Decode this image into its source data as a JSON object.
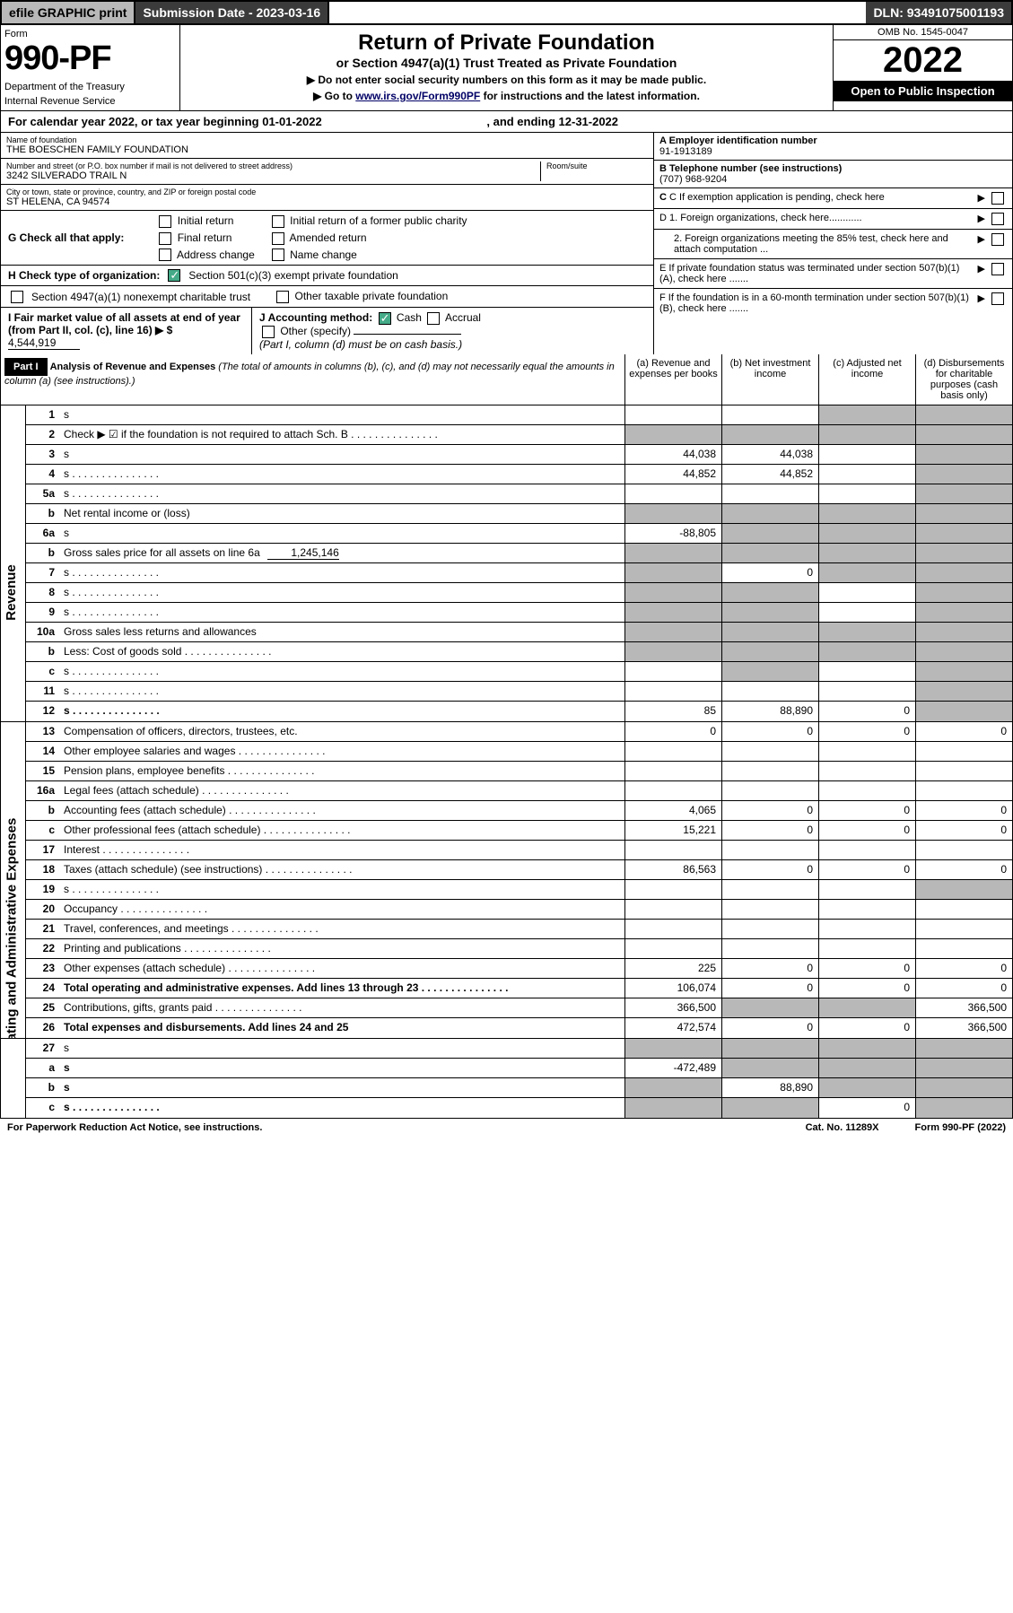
{
  "topbar": {
    "efile": "efile GRAPHIC print",
    "submission": "Submission Date - 2023-03-16",
    "dln": "DLN: 93491075001193"
  },
  "header": {
    "form_label": "Form",
    "form_number": "990-PF",
    "dept1": "Department of the Treasury",
    "dept2": "Internal Revenue Service",
    "title": "Return of Private Foundation",
    "subtitle": "or Section 4947(a)(1) Trust Treated as Private Foundation",
    "note1": "▶ Do not enter social security numbers on this form as it may be made public.",
    "note2": "▶ Go to ",
    "note2_link": "www.irs.gov/Form990PF",
    "note2_tail": " for instructions and the latest information.",
    "omb": "OMB No. 1545-0047",
    "year": "2022",
    "open": "Open to Public Inspection"
  },
  "cal_year": "For calendar year 2022, or tax year beginning 01-01-2022",
  "cal_year_end": ", and ending 12-31-2022",
  "entity": {
    "name_label": "Name of foundation",
    "name": "THE BOESCHEN FAMILY FOUNDATION",
    "addr_label": "Number and street (or P.O. box number if mail is not delivered to street address)",
    "addr": "3242 SILVERADO TRAIL N",
    "room_label": "Room/suite",
    "city_label": "City or town, state or province, country, and ZIP or foreign postal code",
    "city": "ST HELENA, CA  94574",
    "ein_label": "A Employer identification number",
    "ein": "91-1913189",
    "phone_label": "B Telephone number (see instructions)",
    "phone": "(707) 968-9204",
    "c_label": "C If exemption application is pending, check here",
    "d1": "D 1. Foreign organizations, check here............",
    "d2": "2. Foreign organizations meeting the 85% test, check here and attach computation ...",
    "e_label": "E If private foundation status was terminated under section 507(b)(1)(A), check here .......",
    "f_label": "F If the foundation is in a 60-month termination under section 507(b)(1)(B), check here .......",
    "g_label": "G Check all that apply:",
    "g_opts": [
      "Initial return",
      "Final return",
      "Address change",
      "Initial return of a former public charity",
      "Amended return",
      "Name change"
    ],
    "h_label": "H Check type of organization:",
    "h_opt1": "Section 501(c)(3) exempt private foundation",
    "h_opt2": "Section 4947(a)(1) nonexempt charitable trust",
    "h_opt3": "Other taxable private foundation",
    "i_label": "I Fair market value of all assets at end of year (from Part II, col. (c), line 16) ▶ $",
    "i_value": "4,544,919",
    "j_label": "J Accounting method:",
    "j_cash": "Cash",
    "j_accrual": "Accrual",
    "j_other": "Other (specify)",
    "j_note": "(Part I, column (d) must be on cash basis.)"
  },
  "part1": {
    "label": "Part I",
    "title": "Analysis of Revenue and Expenses",
    "title_note": "(The total of amounts in columns (b), (c), and (d) may not necessarily equal the amounts in column (a) (see instructions).)",
    "col_a": "(a) Revenue and expenses per books",
    "col_b": "(b) Net investment income",
    "col_c": "(c) Adjusted net income",
    "col_d": "(d) Disbursements for charitable purposes (cash basis only)"
  },
  "sections": {
    "revenue": "Revenue",
    "expenses": "Operating and Administrative Expenses"
  },
  "rows": [
    {
      "n": "1",
      "d": "s",
      "a": "",
      "b": "",
      "c": "s"
    },
    {
      "n": "2",
      "d": "Check ▶ ☑ if the foundation is not required to attach Sch. B",
      "dotted": true,
      "nb": "s",
      "a": "s",
      "b": "s",
      "c": "s",
      "ds": "s"
    },
    {
      "n": "3",
      "d": "s",
      "a": "44,038",
      "b": "44,038",
      "c": ""
    },
    {
      "n": "4",
      "d": "s",
      "dotted": true,
      "a": "44,852",
      "b": "44,852",
      "c": ""
    },
    {
      "n": "5a",
      "d": "s",
      "dotted": true,
      "a": "",
      "b": "",
      "c": ""
    },
    {
      "n": "b",
      "d": "Net rental income or (loss)",
      "a": "s",
      "b": "s",
      "c": "s",
      "ds": "s"
    },
    {
      "n": "6a",
      "d": "s",
      "a": "-88,805",
      "b": "s",
      "c": "s"
    },
    {
      "n": "b",
      "d": "Gross sales price for all assets on line 6a",
      "inline": "1,245,146",
      "a": "s",
      "b": "s",
      "c": "s",
      "ds": "s"
    },
    {
      "n": "7",
      "d": "s",
      "dotted": true,
      "a": "s",
      "b": "0",
      "c": "s"
    },
    {
      "n": "8",
      "d": "s",
      "dotted": true,
      "a": "s",
      "b": "s",
      "c": ""
    },
    {
      "n": "9",
      "d": "s",
      "dotted": true,
      "a": "s",
      "b": "s",
      "c": ""
    },
    {
      "n": "10a",
      "d": "Gross sales less returns and allowances",
      "a": "s",
      "b": "s",
      "c": "s",
      "ds": "s"
    },
    {
      "n": "b",
      "d": "Less: Cost of goods sold",
      "dotted": true,
      "a": "s",
      "b": "s",
      "c": "s",
      "ds": "s"
    },
    {
      "n": "c",
      "d": "s",
      "dotted": true,
      "a": "",
      "b": "s",
      "c": ""
    },
    {
      "n": "11",
      "d": "s",
      "dotted": true,
      "a": "",
      "b": "",
      "c": ""
    },
    {
      "n": "12",
      "d": "s",
      "dotted": true,
      "bold": true,
      "a": "85",
      "b": "88,890",
      "c": "0"
    }
  ],
  "exp_rows": [
    {
      "n": "13",
      "d": "Compensation of officers, directors, trustees, etc.",
      "a": "0",
      "b": "0",
      "c": "0",
      "dv": "0"
    },
    {
      "n": "14",
      "d": "Other employee salaries and wages",
      "dotted": true,
      "a": "",
      "b": "",
      "c": "",
      "dv": ""
    },
    {
      "n": "15",
      "d": "Pension plans, employee benefits",
      "dotted": true,
      "a": "",
      "b": "",
      "c": "",
      "dv": ""
    },
    {
      "n": "16a",
      "d": "Legal fees (attach schedule)",
      "dotted": true,
      "a": "",
      "b": "",
      "c": "",
      "dv": ""
    },
    {
      "n": "b",
      "d": "Accounting fees (attach schedule)",
      "dotted": true,
      "a": "4,065",
      "b": "0",
      "c": "0",
      "dv": "0"
    },
    {
      "n": "c",
      "d": "Other professional fees (attach schedule)",
      "dotted": true,
      "a": "15,221",
      "b": "0",
      "c": "0",
      "dv": "0"
    },
    {
      "n": "17",
      "d": "Interest",
      "dotted": true,
      "a": "",
      "b": "",
      "c": "",
      "dv": ""
    },
    {
      "n": "18",
      "d": "Taxes (attach schedule) (see instructions)",
      "dotted": true,
      "a": "86,563",
      "b": "0",
      "c": "0",
      "dv": "0"
    },
    {
      "n": "19",
      "d": "s",
      "dotted": true,
      "a": "",
      "b": "",
      "c": ""
    },
    {
      "n": "20",
      "d": "Occupancy",
      "dotted": true,
      "a": "",
      "b": "",
      "c": "",
      "dv": ""
    },
    {
      "n": "21",
      "d": "Travel, conferences, and meetings",
      "dotted": true,
      "a": "",
      "b": "",
      "c": "",
      "dv": ""
    },
    {
      "n": "22",
      "d": "Printing and publications",
      "dotted": true,
      "a": "",
      "b": "",
      "c": "",
      "dv": ""
    },
    {
      "n": "23",
      "d": "Other expenses (attach schedule)",
      "dotted": true,
      "a": "225",
      "b": "0",
      "c": "0",
      "dv": "0"
    },
    {
      "n": "24",
      "d": "Total operating and administrative expenses. Add lines 13 through 23",
      "dotted": true,
      "bold": true,
      "a": "106,074",
      "b": "0",
      "c": "0",
      "dv": "0"
    },
    {
      "n": "25",
      "d": "Contributions, gifts, grants paid",
      "dotted": true,
      "a": "366,500",
      "b": "s",
      "c": "s",
      "dv": "366,500"
    },
    {
      "n": "26",
      "d": "Total expenses and disbursements. Add lines 24 and 25",
      "bold": true,
      "a": "472,574",
      "b": "0",
      "c": "0",
      "dv": "366,500"
    }
  ],
  "bottom_rows": [
    {
      "n": "27",
      "d": "s",
      "a": "s",
      "b": "s",
      "c": "s"
    },
    {
      "n": "a",
      "d": "s",
      "bold": true,
      "a": "-472,489",
      "b": "s",
      "c": "s"
    },
    {
      "n": "b",
      "d": "s",
      "bold": true,
      "a": "s",
      "b": "88,890",
      "c": "s"
    },
    {
      "n": "c",
      "d": "s",
      "dotted": true,
      "bold": true,
      "a": "s",
      "b": "s",
      "c": "0"
    }
  ],
  "footer": {
    "left": "For Paperwork Reduction Act Notice, see instructions.",
    "mid": "Cat. No. 11289X",
    "right": "Form 990-PF (2022)"
  }
}
